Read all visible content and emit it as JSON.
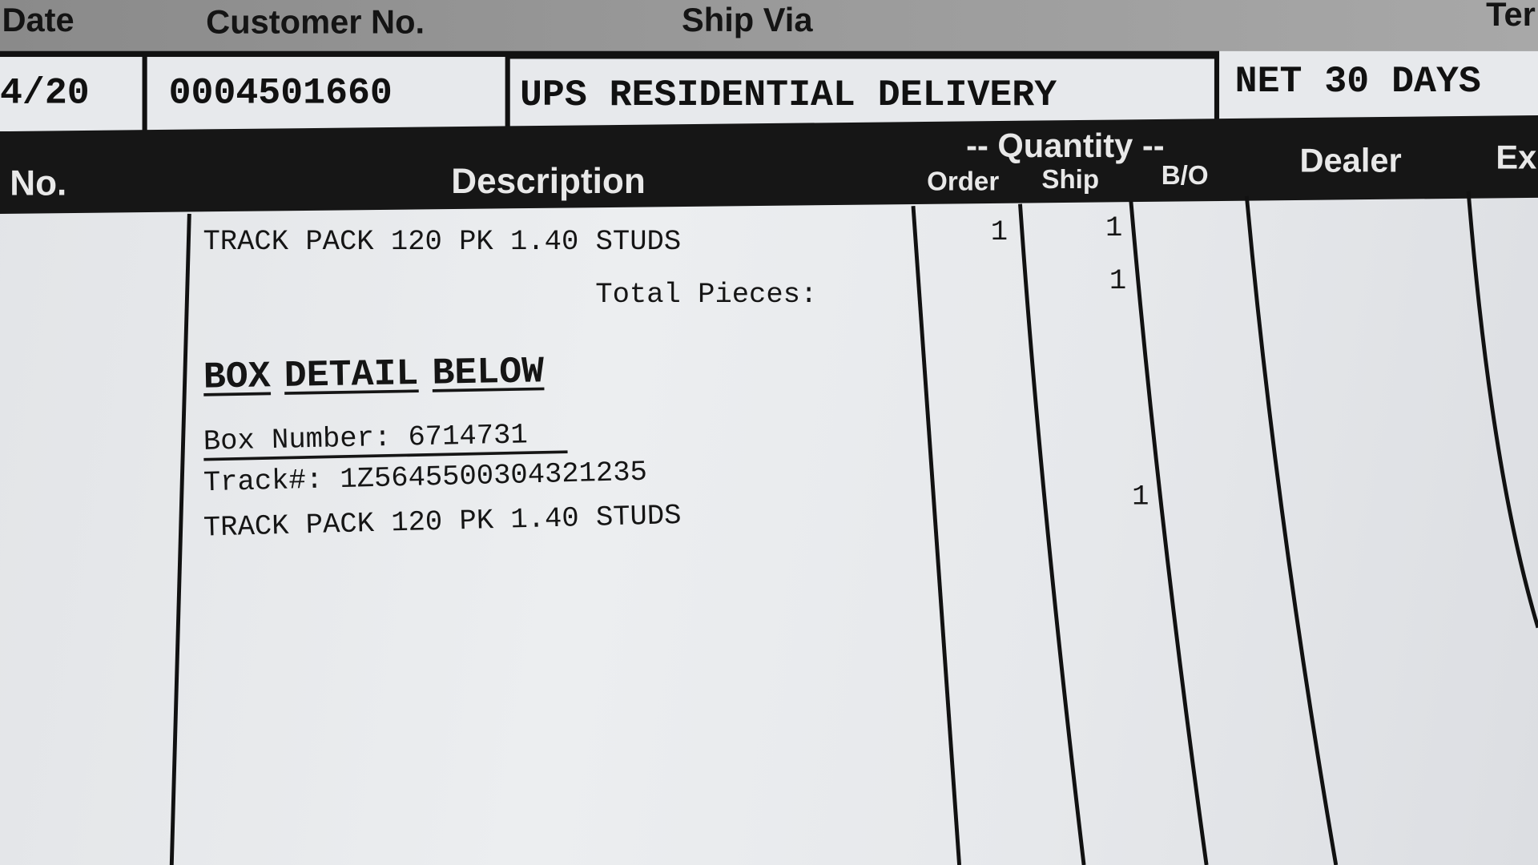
{
  "header": {
    "labels": {
      "date": "Date",
      "customer_no": "Customer No.",
      "ship_via": "Ship Via",
      "terms": "Ter"
    },
    "values": {
      "date": "4/20",
      "customer_no": "0004501660",
      "ship_via": "UPS RESIDENTIAL DELIVERY",
      "terms": "NET 30 DAYS"
    }
  },
  "columns": {
    "no": "No.",
    "description": "Description",
    "quantity": "-- Quantity --",
    "order": "Order",
    "ship": "Ship",
    "bo": "B/O",
    "dealer": "Dealer",
    "ext": "Ex"
  },
  "lines": {
    "item_description": "TRACK PACK 120 PK 1.40 STUDS",
    "item_order": "1",
    "item_ship": "1",
    "total_label": "Total Pieces:",
    "total_ship": "1",
    "box_detail": [
      "BOX",
      "DETAIL",
      "BELOW"
    ],
    "box_number": "Box Number: 6714731",
    "track": "Track#: 1Z5645500304321235",
    "box_item": "TRACK PACK 120 PK 1.40 STUDS",
    "box_item_qty": "1"
  }
}
